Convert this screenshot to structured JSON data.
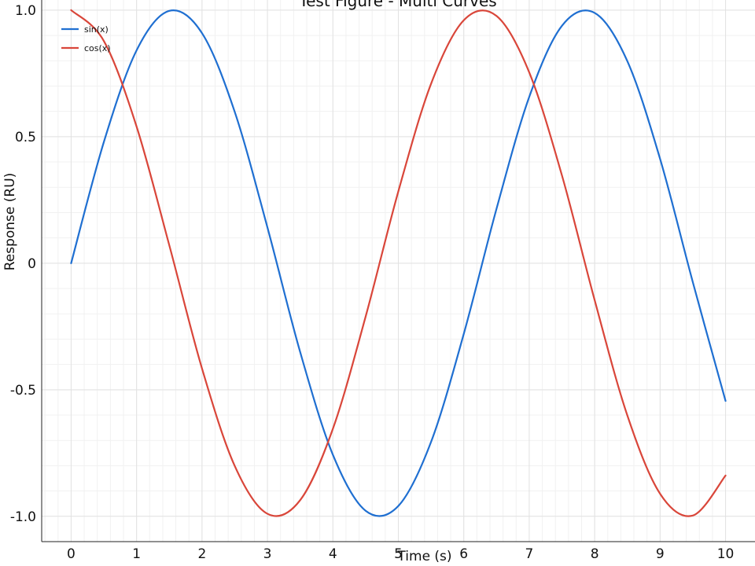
{
  "chart_data": {
    "type": "line",
    "title": "Test Figure - Multi Curves",
    "xlabel": "Time (s)",
    "ylabel": "Response (RU)",
    "xlim": [
      -0.45,
      10.45
    ],
    "ylim": [
      -1.1,
      1.04
    ],
    "x_ticks": [
      0,
      1,
      2,
      3,
      4,
      5,
      6,
      7,
      8,
      9,
      10
    ],
    "x_tick_labels": [
      "0",
      "1",
      "2",
      "3",
      "4",
      "5",
      "6",
      "7",
      "8",
      "9",
      "10"
    ],
    "y_ticks": [
      1.0,
      0.5,
      0,
      -0.5,
      -1.0
    ],
    "y_tick_labels": [
      "1.0",
      "0.5",
      "0",
      "-0.5",
      "-1.0"
    ],
    "grid": true,
    "legend_position": "top-left",
    "x": [
      0,
      0.5,
      1,
      1.5,
      2,
      2.5,
      3,
      3.5,
      4,
      4.5,
      5,
      5.5,
      6,
      6.5,
      7,
      7.5,
      8,
      8.5,
      9,
      9.5,
      10
    ],
    "series": [
      {
        "name": "sin(x)",
        "color": "#1f6fd1",
        "values": [
          0,
          0.479,
          0.841,
          0.997,
          0.909,
          0.598,
          0.141,
          -0.351,
          -0.757,
          -0.978,
          -0.959,
          -0.706,
          -0.279,
          0.215,
          0.657,
          0.938,
          0.989,
          0.798,
          0.412,
          -0.075,
          -0.544
        ]
      },
      {
        "name": "cos(x)",
        "color": "#d9463a",
        "values": [
          1,
          0.878,
          0.54,
          0.071,
          -0.416,
          -0.801,
          -0.99,
          -0.936,
          -0.654,
          -0.211,
          0.284,
          0.709,
          0.96,
          0.977,
          0.754,
          0.347,
          -0.146,
          -0.602,
          -0.911,
          -0.997,
          -0.839
        ]
      }
    ]
  }
}
